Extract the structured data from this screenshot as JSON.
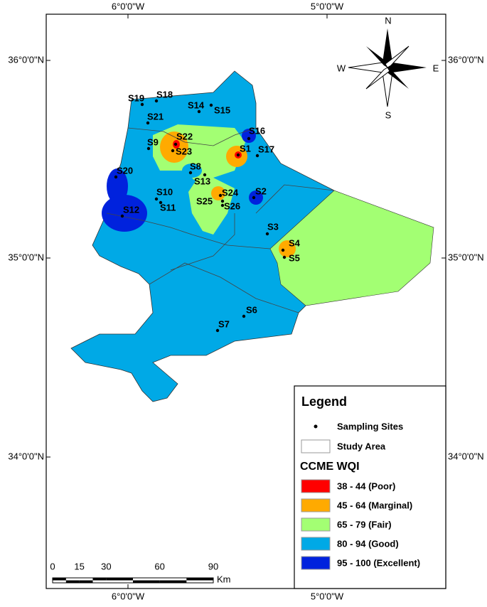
{
  "axes": {
    "top": [
      "6°0'0\"W",
      "5°0'0\"W"
    ],
    "bottom": [
      "6°0'0\"W",
      "5°0'0\"W"
    ],
    "left": [
      "36°0'0\"N",
      "35°0'0\"N",
      "34°0'0\"N"
    ],
    "right": [
      "36°0'0\"N",
      "35°0'0\"N",
      "34°0'0\"N"
    ]
  },
  "compass": {
    "n": "N",
    "e": "E",
    "s": "S",
    "w": "W"
  },
  "sites": [
    "S1",
    "S2",
    "S3",
    "S4",
    "S5",
    "S6",
    "S7",
    "S8",
    "S9",
    "S10",
    "S11",
    "S12",
    "S13",
    "S14",
    "S15",
    "S16",
    "S17",
    "S18",
    "S19",
    "S20",
    "S21",
    "S22",
    "S23",
    "S24",
    "S25",
    "S26"
  ],
  "legend": {
    "title": "Legend",
    "sampling_sites": "Sampling Sites",
    "study_area": "Study Area",
    "wqi_title": "CCME WQI",
    "classes": [
      {
        "label": "38 - 44 (Poor)",
        "color": "#ff0000"
      },
      {
        "label": "45 - 64 (Marginal)",
        "color": "#ffaa00"
      },
      {
        "label": "65 - 79 (Fair)",
        "color": "#a3ff73"
      },
      {
        "label": "80 - 94 (Good)",
        "color": "#00a9e6"
      },
      {
        "label": "95 - 100 (Excellent)",
        "color": "#0022dd"
      }
    ]
  },
  "scale_bar": {
    "ticks": [
      0,
      15,
      30,
      60,
      90
    ],
    "unit": "Km"
  }
}
